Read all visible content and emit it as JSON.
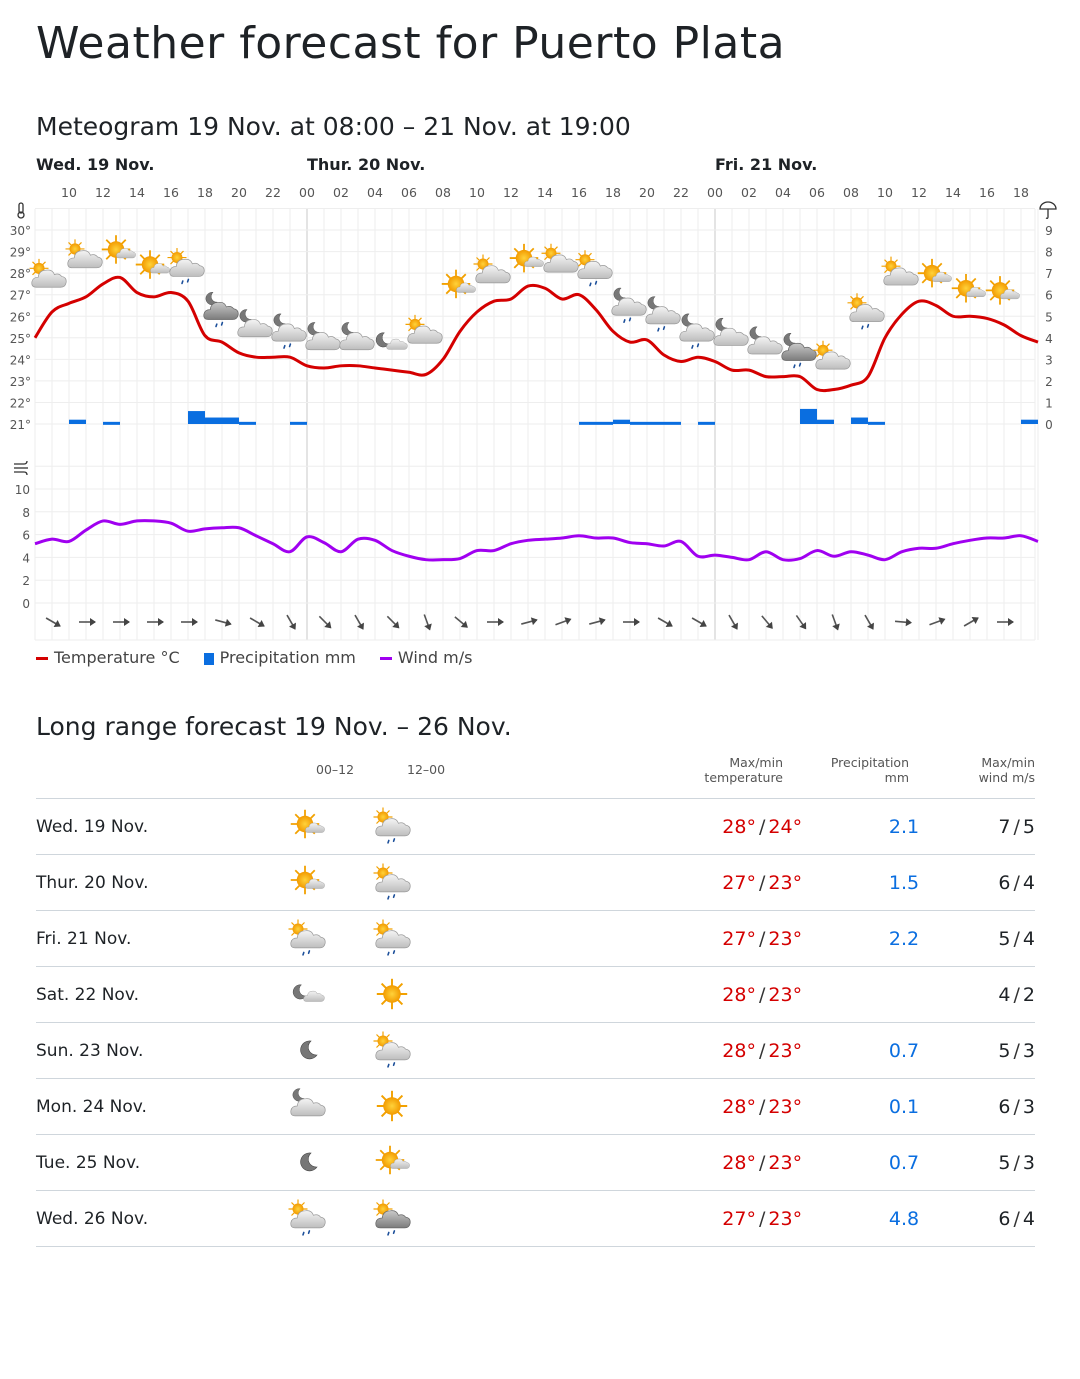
{
  "title": "Weather forecast for Puerto Plata",
  "meteogram": {
    "title": "Meteogram 19 Nov. at 08:00 – 21 Nov. at 19:00",
    "days": [
      {
        "label": "Wed. 19 Nov.",
        "start_hour_index": 0
      },
      {
        "label": "Thur. 20 Nov.",
        "start_hour_index": 16
      },
      {
        "label": "Fri. 21 Nov.",
        "start_hour_index": 40
      }
    ],
    "legend": {
      "temperature": "Temperature °C",
      "precipitation": "Precipitation mm",
      "wind": "Wind m/s"
    },
    "colors": {
      "temperature": "#d40000",
      "precipitation": "#0a6ee0",
      "wind": "#a000f0"
    }
  },
  "chart_data": {
    "type": "line",
    "start_hour": 8,
    "hours_count": 60,
    "temp_axis": {
      "ticks": [
        "21°",
        "22°",
        "23°",
        "24°",
        "25°",
        "26°",
        "27°",
        "28°",
        "29°",
        "30°"
      ],
      "range": [
        21,
        30
      ]
    },
    "precip_axis": {
      "ticks": [
        "0",
        "1",
        "2",
        "3",
        "4",
        "5",
        "6",
        "7",
        "8",
        "9"
      ],
      "range": [
        0,
        9
      ]
    },
    "wind_axis": {
      "ticks": [
        "0",
        "2",
        "4",
        "6",
        "8",
        "10"
      ],
      "range": [
        0,
        10
      ]
    },
    "temperature": [
      25.0,
      26.2,
      26.6,
      26.9,
      27.5,
      27.8,
      27.1,
      26.9,
      27.1,
      26.7,
      25.1,
      24.8,
      24.3,
      24.1,
      24.1,
      24.1,
      23.7,
      23.6,
      23.7,
      23.7,
      23.6,
      23.5,
      23.4,
      23.3,
      24.0,
      25.3,
      26.2,
      26.7,
      26.8,
      27.4,
      27.3,
      26.8,
      27.0,
      26.3,
      25.3,
      24.8,
      24.9,
      24.2,
      23.9,
      24.1,
      23.9,
      23.5,
      23.5,
      23.2,
      23.2,
      23.2,
      22.6,
      22.6,
      22.8,
      23.2,
      25.0,
      26.1,
      26.7,
      26.5,
      26.0,
      26.0,
      25.9,
      25.6,
      25.1,
      24.8
    ],
    "precipitation": [
      0,
      0,
      0.2,
      0,
      0.1,
      0,
      0,
      0,
      0,
      0.6,
      0.3,
      0.3,
      0.1,
      0,
      0,
      0.1,
      0,
      0,
      0,
      0,
      0,
      0,
      0,
      0,
      0,
      0,
      0,
      0,
      0,
      0,
      0,
      0,
      0.1,
      0.1,
      0.2,
      0.1,
      0.1,
      0.1,
      0,
      0.1,
      0,
      0,
      0,
      0,
      0,
      0.7,
      0.2,
      0,
      0.3,
      0.1,
      0,
      0,
      0,
      0,
      0,
      0,
      0,
      0,
      0.2,
      0
    ],
    "wind": [
      5.2,
      5.6,
      5.4,
      6.4,
      7.2,
      6.9,
      7.2,
      7.2,
      7.0,
      6.3,
      6.5,
      6.6,
      6.6,
      5.9,
      5.2,
      4.5,
      5.8,
      5.3,
      4.5,
      5.6,
      5.5,
      4.6,
      4.1,
      3.8,
      3.8,
      3.9,
      4.6,
      4.6,
      5.2,
      5.5,
      5.6,
      5.7,
      5.9,
      5.7,
      5.7,
      5.3,
      5.2,
      5.0,
      5.4,
      4.1,
      4.2,
      4.0,
      3.8,
      4.5,
      3.8,
      3.9,
      4.6,
      4.1,
      4.5,
      4.2,
      3.8,
      4.5,
      4.8,
      4.8,
      5.2,
      5.5,
      5.7,
      5.7,
      5.9,
      5.4
    ],
    "wind_direction_from_deg": [
      120,
      90,
      90,
      90,
      90,
      105,
      120,
      150,
      135,
      150,
      135,
      160,
      130,
      90,
      75,
      70,
      75,
      90,
      120,
      120,
      150,
      140,
      145,
      160,
      150,
      95,
      70,
      60,
      90
    ],
    "symbols": [
      "partly-cloudy-day",
      "partly-cloudy-day",
      "fair-day",
      "fair-day",
      "rain-showers-day",
      "rain-showers-night-dark",
      "partly-cloudy-night",
      "rain-showers-night",
      "partly-cloudy-night",
      "partly-cloudy-night",
      "fair-night",
      "partly-cloudy-day",
      "fair-day",
      "partly-cloudy-day",
      "fair-day",
      "partly-cloudy-day",
      "rain-showers-day",
      "rain-showers-night",
      "rain-showers-night",
      "rain-showers-night",
      "partly-cloudy-night",
      "partly-cloudy-night",
      "rain-showers-night-dark",
      "partly-cloudy-day",
      "rain-showers-day",
      "partly-cloudy-day",
      "fair-day",
      "fair-day",
      "fair-day"
    ]
  },
  "long_range": {
    "title": "Long range forecast 19 Nov. – 26 Nov.",
    "headers": {
      "p1": "00–12",
      "p2": "12–00",
      "temp1": "Max/min",
      "temp2": "temperature",
      "prec1": "Precipitation",
      "prec2": "mm",
      "wind1": "Max/min",
      "wind2": "wind m/s"
    },
    "rows": [
      {
        "day": "Wed. 19 Nov.",
        "icon1": "fair-day",
        "icon2": "rain-showers-day",
        "max": "28°",
        "min": "24°",
        "precip": "2.1",
        "wmax": "7",
        "wmin": "5"
      },
      {
        "day": "Thur. 20 Nov.",
        "icon1": "fair-day",
        "icon2": "rain-showers-day",
        "max": "27°",
        "min": "23°",
        "precip": "1.5",
        "wmax": "6",
        "wmin": "4"
      },
      {
        "day": "Fri. 21 Nov.",
        "icon1": "rain-showers-day",
        "icon2": "rain-showers-day",
        "max": "27°",
        "min": "23°",
        "precip": "2.2",
        "wmax": "5",
        "wmin": "4"
      },
      {
        "day": "Sat. 22 Nov.",
        "icon1": "fair-night",
        "icon2": "clear-day",
        "max": "28°",
        "min": "23°",
        "precip": "",
        "wmax": "4",
        "wmin": "2"
      },
      {
        "day": "Sun. 23 Nov.",
        "icon1": "clear-night",
        "icon2": "rain-showers-day",
        "max": "28°",
        "min": "23°",
        "precip": "0.7",
        "wmax": "5",
        "wmin": "3"
      },
      {
        "day": "Mon. 24 Nov.",
        "icon1": "partly-cloudy-night",
        "icon2": "clear-day",
        "max": "28°",
        "min": "23°",
        "precip": "0.1",
        "wmax": "6",
        "wmin": "3"
      },
      {
        "day": "Tue. 25 Nov.",
        "icon1": "clear-night",
        "icon2": "fair-day",
        "max": "28°",
        "min": "23°",
        "precip": "0.7",
        "wmax": "5",
        "wmin": "3"
      },
      {
        "day": "Wed. 26 Nov.",
        "icon1": "rain-showers-day",
        "icon2": "rain-showers-day-dark",
        "max": "27°",
        "min": "23°",
        "precip": "4.8",
        "wmax": "6",
        "wmin": "4"
      }
    ]
  }
}
